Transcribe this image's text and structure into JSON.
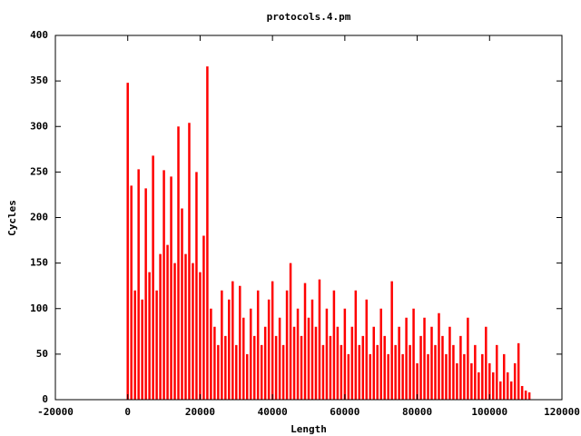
{
  "chart_data": {
    "type": "impulse",
    "title": "protocols.4.pm",
    "x_label": "Length",
    "y_label": "Cycles",
    "color": "#ff0000",
    "x": [
      0,
      1000,
      2000,
      3000,
      4000,
      5000,
      6000,
      7000,
      8000,
      9000,
      10000,
      11000,
      12000,
      13000,
      14000,
      15000,
      16000,
      17000,
      18000,
      19000,
      20000,
      21000,
      22000,
      23000,
      24000,
      25000,
      26000,
      27000,
      28000,
      29000,
      30000,
      31000,
      32000,
      33000,
      34000,
      35000,
      36000,
      37000,
      38000,
      39000,
      40000,
      41000,
      42000,
      43000,
      44000,
      45000,
      46000,
      47000,
      48000,
      49000,
      50000,
      51000,
      52000,
      53000,
      54000,
      55000,
      56000,
      57000,
      58000,
      59000,
      60000,
      61000,
      62000,
      63000,
      64000,
      65000,
      66000,
      67000,
      68000,
      69000,
      70000,
      71000,
      72000,
      73000,
      74000,
      75000,
      76000,
      77000,
      78000,
      79000,
      80000,
      81000,
      82000,
      83000,
      84000,
      85000,
      86000,
      87000,
      88000,
      89000,
      90000,
      91000,
      92000,
      93000,
      94000,
      95000,
      96000,
      97000,
      98000,
      99000,
      100000,
      101000,
      102000,
      103000,
      104000,
      105000,
      106000,
      107000,
      108000,
      109000,
      110000,
      111000
    ],
    "values": [
      348,
      235,
      120,
      253,
      110,
      232,
      140,
      268,
      120,
      160,
      252,
      170,
      245,
      150,
      300,
      210,
      160,
      304,
      150,
      250,
      140,
      180,
      366,
      100,
      80,
      60,
      120,
      70,
      110,
      130,
      60,
      125,
      90,
      50,
      100,
      70,
      120,
      60,
      80,
      110,
      130,
      70,
      90,
      60,
      120,
      150,
      80,
      100,
      70,
      128,
      90,
      110,
      80,
      132,
      60,
      100,
      70,
      120,
      80,
      60,
      100,
      50,
      80,
      120,
      60,
      70,
      110,
      50,
      80,
      60,
      100,
      70,
      50,
      130,
      60,
      80,
      50,
      90,
      60,
      100,
      40,
      70,
      90,
      50,
      80,
      60,
      95,
      70,
      50,
      80,
      60,
      40,
      70,
      50,
      90,
      40,
      60,
      30,
      50,
      80,
      40,
      30,
      60,
      20,
      50,
      30,
      20,
      40,
      62,
      15,
      10,
      8
    ],
    "xlim": [
      -20000,
      120000
    ],
    "ylim": [
      0,
      400
    ],
    "xticks": [
      -20000,
      0,
      20000,
      40000,
      60000,
      80000,
      100000,
      120000
    ],
    "yticks": [
      0,
      50,
      100,
      150,
      200,
      250,
      300,
      350,
      400
    ]
  }
}
